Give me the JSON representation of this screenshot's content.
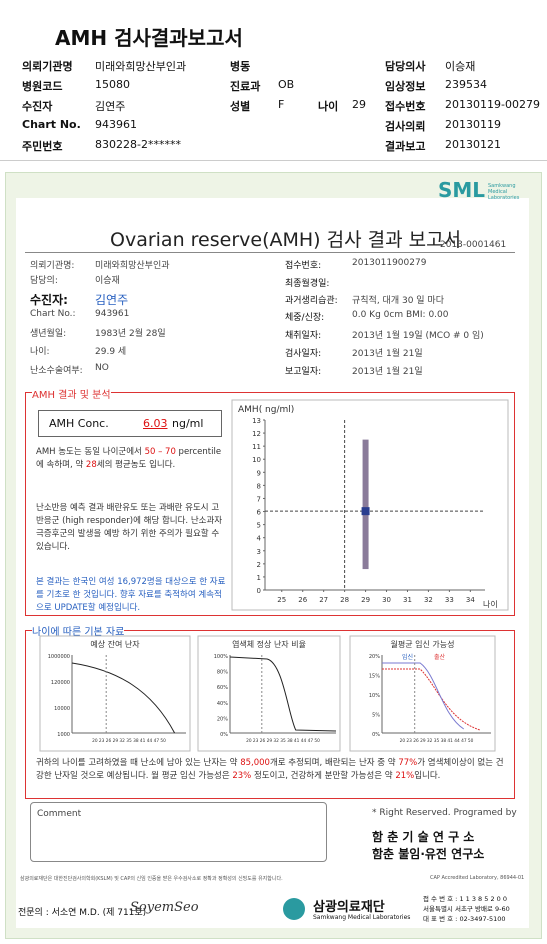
{
  "header": {
    "title": "AMH 검사결과보고서",
    "fields": [
      {
        "label": "의뢰기관명",
        "value": "미래와희망산부인과"
      },
      {
        "label": "병동"
      },
      {
        "label": "담당의사",
        "value": "이승재"
      },
      {
        "label": "병원코드",
        "value": "15080"
      },
      {
        "label": "진료과",
        "value": "OB"
      },
      {
        "label": "임상정보",
        "value": "239534"
      },
      {
        "label": "수진자",
        "value": "김연주"
      },
      {
        "label": "성별",
        "value": "F"
      },
      {
        "label": "나이",
        "value": "29"
      },
      {
        "label": "접수번호",
        "value": "20130119-00279"
      },
      {
        "label": "Chart No.",
        "value": "943961"
      },
      {
        "label": "검사의뢰",
        "value": "20130119"
      },
      {
        "label": "주민번호",
        "value": "830228-2******"
      },
      {
        "label": "결과보고",
        "value": "20130121"
      }
    ]
  },
  "report": {
    "logo": "SML",
    "logo_sub": "Samkwang Medical Laboratories",
    "title": "Ovarian reserve(AMH) 검사 결과 보고서",
    "number": "2013-0001461",
    "left": [
      {
        "label": "의뢰기관명:",
        "value": "미래와희망산부인과"
      },
      {
        "label": "담당의:",
        "value": "이승재"
      },
      {
        "label": "수진자:",
        "value": "김연주"
      },
      {
        "label": "Chart No.:",
        "value": "943961"
      },
      {
        "label": "생년월일:",
        "value": "1983년 2월 28일"
      },
      {
        "label": "나이:",
        "value": "29.9 세"
      },
      {
        "label": "난소수술여부:",
        "value": "NO"
      }
    ],
    "right": [
      {
        "label": "접수번호:",
        "value": "2013011900279"
      },
      {
        "label": "최종월경일:"
      },
      {
        "label": "과거생리습관:",
        "value": "규칙적, 대개  30 일 마다"
      },
      {
        "label": "체중/신장:",
        "value": "0.0 Kg    0cm   BMI:  0.00"
      },
      {
        "label": "채취일자:",
        "value": "2013년 1월 19일  (MCO #  0 임)"
      },
      {
        "label": "검사일자:",
        "value": "2013년 1월 21일"
      },
      {
        "label": "보고일자:",
        "value": "2013년 1월 21일"
      }
    ],
    "analysis": {
      "title": "AMH 결과 및 분석",
      "conc_label": "AMH Conc.",
      "conc_value": "6.03",
      "conc_unit": "ng/ml",
      "p1": [
        "AMH 농도는 동일 나이군에서 ",
        "50 – 70",
        " percentile에 속하며, 약 ",
        "28",
        "세의 평균농도 입니다."
      ],
      "p2": "난소반응 예측 결과 배란유도 또는 과배란 유도시 고반응군 (high responder)에 해당 합니다. 난소과자극증후군의 발생을 예방 하기 위한 주의가 필요할 수 있습니다.",
      "p3": "본 결과는 한국인 여성 16,972명을 대상으로 한 자료를 기초로 한 것입니다. 향후 자료를 축적하여 계속적으로 UPDATE할 예정입니다.",
      "chart": {
        "ylabel": "AMH( ng/ml)",
        "xlabel": "나이",
        "xlim": [
          24.2,
          34.7
        ],
        "ylim": [
          0,
          13
        ],
        "xticks": [
          25,
          26,
          27,
          28,
          29,
          30,
          31,
          32,
          33,
          34
        ],
        "yticks": [
          0,
          1,
          2,
          3,
          4,
          5,
          6,
          7,
          8,
          9,
          10,
          11,
          12,
          13
        ],
        "reference_age": 28,
        "age": 29,
        "value": 6.03,
        "range": [
          1.6,
          11.5
        ]
      }
    },
    "basics": {
      "title": "나이에 따른 기본 자료",
      "charts": [
        {
          "title": "예상 잔여 난자",
          "yticks": [
            "1000000",
            "120000",
            "10000",
            "1000"
          ],
          "xticks": "20 23 26 29 32 35 38 41 44 47 50"
        },
        {
          "title": "염색체 정상 난자 비율",
          "yticks": [
            "100%",
            "80%",
            "60%",
            "40%",
            "20%",
            "0%"
          ],
          "xticks": "20 23 26 29 32 35 38 41 44 47 50"
        },
        {
          "title": "월평균 임신 가능성",
          "legend": [
            "임신",
            "출산"
          ],
          "yticks": [
            "20%",
            "15%",
            "10%",
            "5%",
            "0%"
          ],
          "xticks": "20 23 26 29 32 35 38 41 44 47 50"
        }
      ],
      "summary": [
        "귀하의 나이를 고려하였을 때 난소에 남아 있는 난자는 약 ",
        "85,000",
        "개로 추정되며, 배란되는 난자 중 약 ",
        "77%",
        "가 염색체이상이 없는 건강한 난자일 것으로 예상됩니다. 월 평균 임신 가능성은 ",
        "23%",
        " 정도이고, 건강하게 분만할 가능성은 약 ",
        "21%",
        "입니다."
      ]
    },
    "comment": "Comment",
    "credit": "* Right Reserved. Programed by",
    "lab1": "함 춘  기 술  연 구 소",
    "lab2": "함춘 불임·유전 연구소",
    "cert": "삼광의료재단은 대한진단검사의학회(KSLM) 및 CAP의 신임 인증을 받은 우수검사소로 정확과 정확성의 신빙도를 유지합니다.",
    "cap": "CAP  Accredited  Laboratory,  86944-01",
    "doctor": "전문의 : 서소연 M.D. (제 711호)",
    "signature": "SoyemSeo",
    "foundation": "삼광의료재단",
    "foundation_sub": "Samkwang Medical Laboratories",
    "contact": [
      "접 수 번 호 : 1 1 3 8 5 2 0 0",
      "서울특별시 서초구 방배로 9-60",
      "대 표 번 호 : 02-3497-5100"
    ]
  }
}
